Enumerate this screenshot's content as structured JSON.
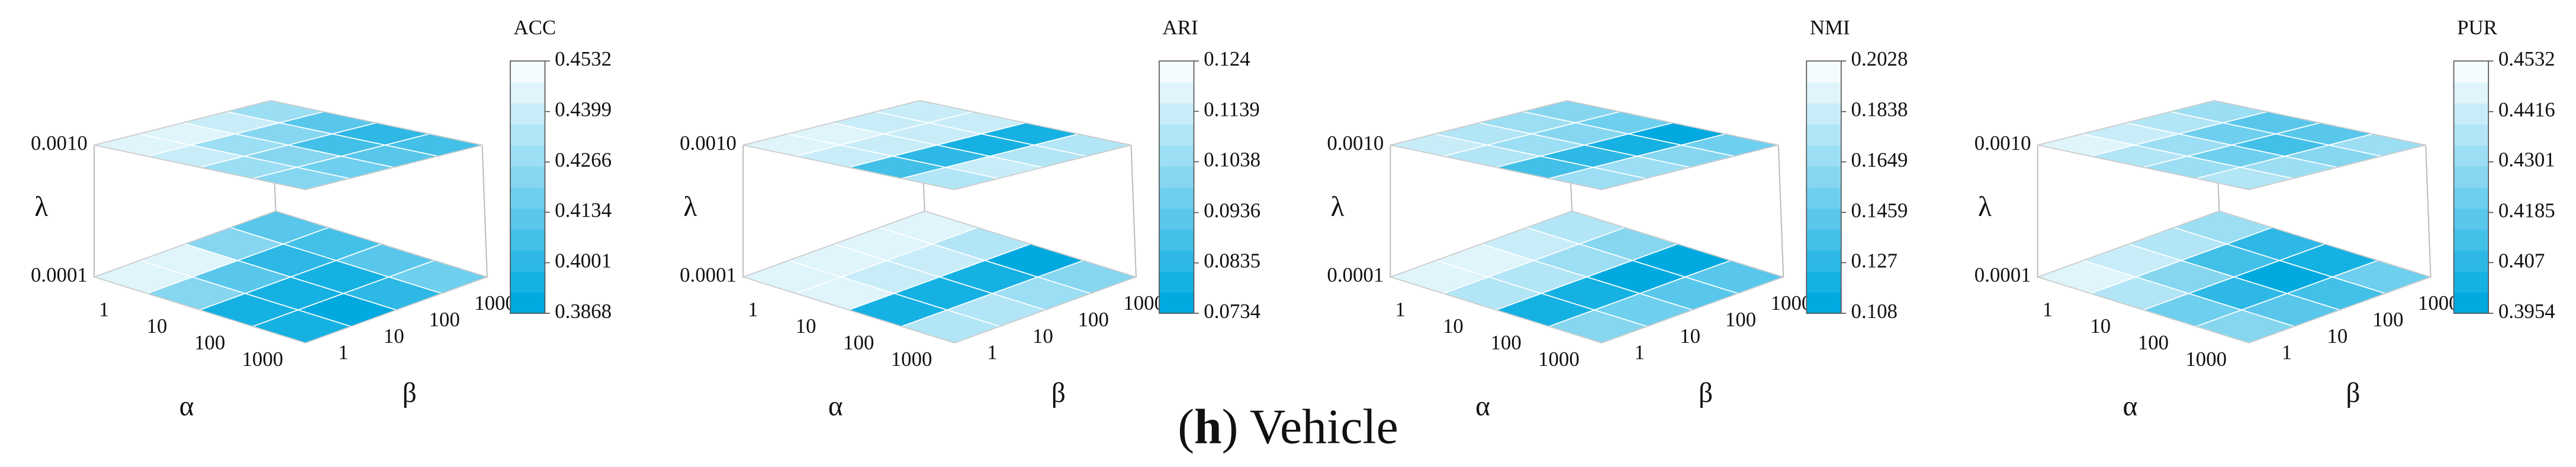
{
  "chart_data": [
    {
      "type": "heatmap3d",
      "title": "ACC",
      "x_label": "α",
      "y_label": "β",
      "z_label": "λ",
      "x_categories": [
        "1",
        "10",
        "100",
        "1000"
      ],
      "y_categories": [
        "1",
        "10",
        "100",
        "1000"
      ],
      "zticks": [
        {
          "value": 0.001,
          "label": "0.0010"
        },
        0.0001
      ],
      "values": [
        [
          [
            0.447,
            0.445,
            0.44,
            0.43
          ],
          [
            0.44,
            0.43,
            0.42,
            0.41
          ],
          [
            0.43,
            0.42,
            0.405,
            0.398
          ],
          [
            0.425,
            0.415,
            0.41,
            0.405
          ]
        ],
        [
          [
            0.45,
            0.446,
            0.42,
            0.41
          ],
          [
            0.42,
            0.41,
            0.4,
            0.405
          ],
          [
            0.395,
            0.39,
            0.395,
            0.41
          ],
          [
            0.39,
            0.388,
            0.4,
            0.415
          ]
        ]
      ],
      "clim": [
        0.3868,
        0.4532
      ],
      "cticks": [
        0.3868,
        0.4001,
        0.4134,
        0.4266,
        0.4399,
        0.4532
      ],
      "cmap": [
        "#00a9e0",
        "#f5fcfe"
      ]
    },
    {
      "type": "heatmap3d",
      "title": "ARI",
      "x_label": "α",
      "y_label": "β",
      "z_label": "λ",
      "x_categories": [
        "1",
        "10",
        "100",
        "1000"
      ],
      "y_categories": [
        "1",
        "10",
        "100",
        "1000"
      ],
      "zticks": [
        {
          "value": 0.001,
          "label": "0.0010"
        },
        0.0001
      ],
      "values": [
        [
          [
            0.118,
            0.118,
            0.117,
            0.116
          ],
          [
            0.117,
            0.116,
            0.115,
            0.114
          ],
          [
            0.085,
            0.082,
            0.08,
            0.076
          ],
          [
            0.112,
            0.113,
            0.112,
            0.11
          ]
        ],
        [
          [
            0.121,
            0.12,
            0.119,
            0.118
          ],
          [
            0.118,
            0.117,
            0.116,
            0.112
          ],
          [
            0.08,
            0.078,
            0.076,
            0.074
          ],
          [
            0.11,
            0.108,
            0.105,
            0.1
          ]
        ]
      ],
      "clim": [
        0.0734,
        0.124
      ],
      "cticks": [
        0.0734,
        0.0835,
        0.0936,
        0.1038,
        0.1139,
        0.124
      ],
      "cmap": [
        "#00a9e0",
        "#f5fcfe"
      ]
    },
    {
      "type": "heatmap3d",
      "title": "NMI",
      "x_label": "α",
      "y_label": "β",
      "z_label": "λ",
      "x_categories": [
        "1",
        "10",
        "100",
        "1000"
      ],
      "y_categories": [
        "1",
        "10",
        "100",
        "1000"
      ],
      "zticks": [
        {
          "value": 0.001,
          "label": "0.0010"
        },
        0.0001
      ],
      "values": [
        [
          [
            0.185,
            0.18,
            0.17,
            0.16
          ],
          [
            0.175,
            0.17,
            0.16,
            0.15
          ],
          [
            0.13,
            0.125,
            0.12,
            0.112
          ],
          [
            0.17,
            0.165,
            0.16,
            0.155
          ]
        ],
        [
          [
            0.195,
            0.19,
            0.185,
            0.18
          ],
          [
            0.18,
            0.175,
            0.17,
            0.16
          ],
          [
            0.12,
            0.115,
            0.112,
            0.11
          ],
          [
            0.16,
            0.15,
            0.145,
            0.14
          ]
        ]
      ],
      "clim": [
        0.108,
        0.2028
      ],
      "cticks": [
        0.108,
        0.127,
        0.1459,
        0.1649,
        0.1838,
        0.2028
      ],
      "cmap": [
        "#00a9e0",
        "#f5fcfe"
      ]
    },
    {
      "type": "heatmap3d",
      "title": "PUR",
      "x_label": "α",
      "y_label": "β",
      "z_label": "λ",
      "x_categories": [
        "1",
        "10",
        "100",
        "1000"
      ],
      "y_categories": [
        "1",
        "10",
        "100",
        "1000"
      ],
      "zticks": [
        {
          "value": 0.001,
          "label": "0.0010"
        },
        0.0001
      ],
      "values": [
        [
          [
            0.448,
            0.445,
            0.44,
            0.432
          ],
          [
            0.44,
            0.43,
            0.42,
            0.415
          ],
          [
            0.432,
            0.42,
            0.41,
            0.418
          ],
          [
            0.44,
            0.432,
            0.428,
            0.43
          ]
        ],
        [
          [
            0.45,
            0.445,
            0.44,
            0.43
          ],
          [
            0.435,
            0.425,
            0.41,
            0.405
          ],
          [
            0.42,
            0.405,
            0.398,
            0.4
          ],
          [
            0.425,
            0.415,
            0.41,
            0.42
          ]
        ]
      ],
      "clim": [
        0.3954,
        0.4532
      ],
      "cticks": [
        0.3954,
        0.407,
        0.4185,
        0.4301,
        0.4416,
        0.4532
      ],
      "cmap": [
        "#00a9e0",
        "#f5fcfe"
      ]
    }
  ],
  "caption": {
    "open": "(",
    "label": "h",
    "text": ") Vehicle"
  }
}
